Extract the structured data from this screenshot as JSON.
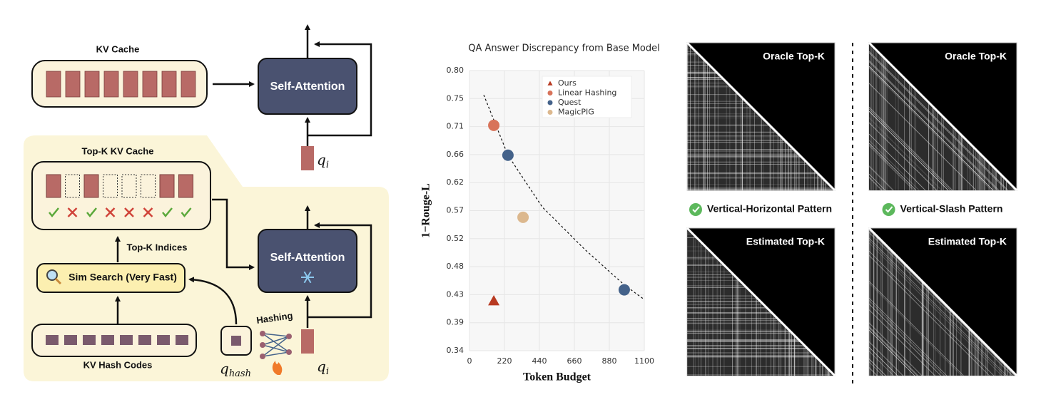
{
  "diagram": {
    "kv_cache": "KV Cache",
    "self_attention_top": "Self-Attention",
    "query_top": {
      "base": "q",
      "sub": "i"
    },
    "topk_cache": "Top-K KV Cache",
    "topk_indices": "Top-K Indices",
    "sim_search": "Sim Search (Very Fast)",
    "hash_codes": "KV Hash Codes",
    "hashing": "Hashing",
    "query_hash": {
      "base": "q",
      "sub": "hash"
    },
    "self_attention_bottom": "Self-Attention",
    "query_bottom": {
      "base": "q",
      "sub": "i"
    }
  },
  "chart_data": {
    "type": "scatter",
    "title": "QA Answer Discrepancy from Base Model",
    "x_label": "Token Budget",
    "y_label": "1−Rouge-L",
    "xlim": [
      0,
      1100
    ],
    "ylim": [
      0.34,
      0.8
    ],
    "xticks": [
      0,
      220,
      440,
      660,
      880,
      1100
    ],
    "yticks": [
      {
        "value": 0.34,
        "label": "0.34"
      },
      {
        "value": 0.386,
        "label": "0.39"
      },
      {
        "value": 0.432,
        "label": "0.43"
      },
      {
        "value": 0.478,
        "label": "0.48"
      },
      {
        "value": 0.524,
        "label": "0.52"
      },
      {
        "value": 0.57,
        "label": "0.57"
      },
      {
        "value": 0.616,
        "label": "0.62"
      },
      {
        "value": 0.662,
        "label": "0.66"
      },
      {
        "value": 0.708,
        "label": "0.71"
      },
      {
        "value": 0.754,
        "label": "0.75"
      },
      {
        "value": 0.8,
        "label": "0.80"
      }
    ],
    "grid": true,
    "legend": "upper right",
    "series": [
      {
        "name": "Ours",
        "color": "#b83a22",
        "marker": "triangle",
        "x": [
          153
        ],
        "values": [
          0.422
        ]
      },
      {
        "name": "Linear Hashing",
        "color": "#d8735a",
        "marker": "circle",
        "x": [
          153
        ],
        "values": [
          0.71
        ]
      },
      {
        "name": "Quest",
        "color": "#44628a",
        "marker": "circle",
        "x": [
          242,
          974
        ],
        "values": [
          0.661,
          0.44
        ]
      },
      {
        "name": "MagicPIG",
        "color": "#dcb88e",
        "marker": "circle",
        "x": [
          337
        ],
        "values": [
          0.559
        ]
      }
    ],
    "trend": {
      "color": "#111",
      "x": [
        90,
        242,
        458,
        727,
        974,
        1100
      ],
      "values": [
        0.76,
        0.661,
        0.576,
        0.506,
        0.448,
        0.424
      ]
    }
  },
  "panels": {
    "left": {
      "top": "Oracle Top-K",
      "bottom": "Estimated Top-K",
      "pattern": "Vertical-Horizontal Pattern"
    },
    "right": {
      "top": "Oracle Top-K",
      "bottom": "Estimated Top-K",
      "pattern": "Vertical-Slash Pattern"
    }
  }
}
